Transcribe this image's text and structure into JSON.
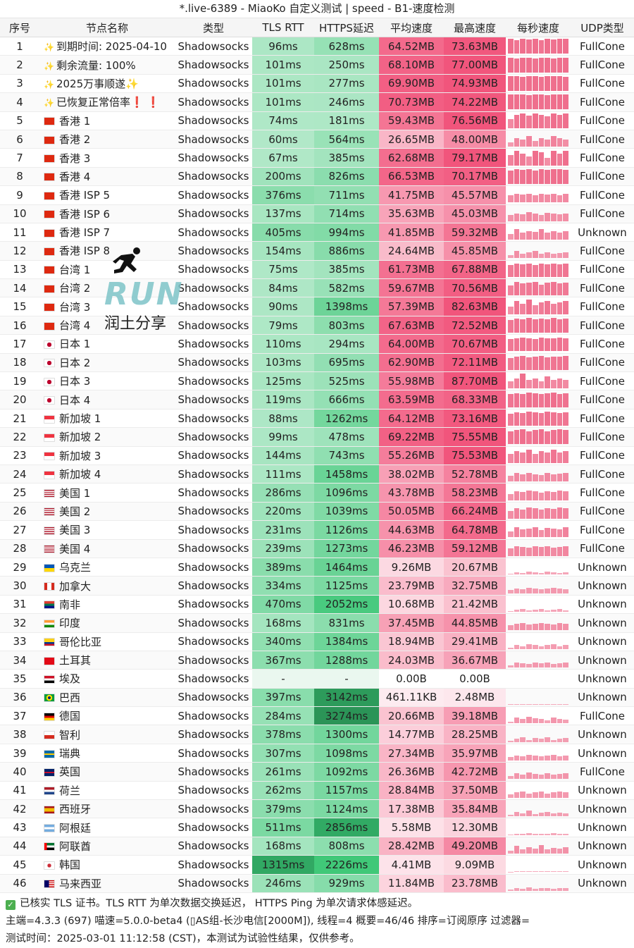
{
  "window": {
    "title": "*.live-6389 - MiaoKo 自定义测试 | speed - B1-速度检测"
  },
  "columns": [
    "序号",
    "节点名称",
    "类型",
    "TLS RTT",
    "HTTPS延迟",
    "平均速度",
    "最高速度",
    "每秒速度",
    "UDP类型"
  ],
  "rows": [
    {
      "idx": "1",
      "flag": "✨",
      "name": "到期时间: 2025-04-10",
      "type": "Shadowsocks",
      "tls": "96ms",
      "https": "628ms",
      "avg": "64.52MB",
      "max": "73.63MB",
      "udp": "FullCone",
      "spark": [
        1,
        0.9,
        1,
        0.95,
        1,
        0.9,
        1,
        0.95,
        1,
        1
      ]
    },
    {
      "idx": "2",
      "flag": "✨",
      "name": "剩余流量: 100%",
      "type": "Shadowsocks",
      "tls": "101ms",
      "https": "250ms",
      "avg": "68.10MB",
      "max": "77.00MB",
      "udp": "FullCone",
      "spark": [
        1,
        0.95,
        1,
        1,
        0.95,
        1,
        1,
        0.95,
        1,
        1
      ]
    },
    {
      "idx": "3",
      "flag": "✨",
      "name": "2025万事顺遂✨",
      "type": "Shadowsocks",
      "tls": "101ms",
      "https": "277ms",
      "avg": "69.90MB",
      "max": "74.93MB",
      "udp": "FullCone",
      "spark": [
        1,
        1,
        0.95,
        1,
        1,
        0.95,
        1,
        1,
        1,
        0.95
      ]
    },
    {
      "idx": "4",
      "flag": "✨",
      "name": "已恢复正常倍率❗ ❗",
      "type": "Shadowsocks",
      "tls": "101ms",
      "https": "246ms",
      "avg": "70.73MB",
      "max": "74.22MB",
      "udp": "FullCone",
      "spark": [
        1,
        1,
        1,
        0.95,
        1,
        1,
        0.95,
        1,
        1,
        1
      ]
    },
    {
      "idx": "5",
      "flag": "HK",
      "name": "香港 1",
      "type": "Shadowsocks",
      "tls": "74ms",
      "https": "181ms",
      "avg": "59.43MB",
      "max": "76.56MB",
      "udp": "FullCone",
      "spark": [
        0.6,
        0.9,
        1,
        0.85,
        1,
        0.9,
        0.8,
        1,
        0.9,
        1
      ]
    },
    {
      "idx": "6",
      "flag": "HK",
      "name": "香港 2",
      "type": "Shadowsocks",
      "tls": "60ms",
      "https": "564ms",
      "avg": "26.65MB",
      "max": "48.00MB",
      "udp": "FullCone",
      "spark": [
        0.3,
        0.6,
        0.5,
        0.7,
        0.4,
        0.6,
        0.5,
        0.7,
        0.6,
        0.5
      ]
    },
    {
      "idx": "7",
      "flag": "HK",
      "name": "香港 3",
      "type": "Shadowsocks",
      "tls": "67ms",
      "https": "385ms",
      "avg": "62.68MB",
      "max": "79.17MB",
      "udp": "FullCone",
      "spark": [
        0.7,
        1,
        0.8,
        0.6,
        1,
        0.9,
        0.5,
        1,
        0.8,
        1
      ]
    },
    {
      "idx": "8",
      "flag": "HK",
      "name": "香港 4",
      "type": "Shadowsocks",
      "tls": "200ms",
      "https": "826ms",
      "avg": "66.53MB",
      "max": "70.17MB",
      "udp": "FullCone",
      "spark": [
        0.9,
        1,
        0.95,
        1,
        0.9,
        1,
        0.95,
        1,
        1,
        0.95
      ]
    },
    {
      "idx": "9",
      "flag": "HK",
      "name": "香港 ISP 5",
      "type": "Shadowsocks",
      "tls": "376ms",
      "https": "711ms",
      "avg": "41.75MB",
      "max": "45.57MB",
      "udp": "FullCone",
      "spark": [
        0.5,
        0.6,
        0.55,
        0.6,
        0.5,
        0.6,
        0.55,
        0.6,
        0.5,
        0.6
      ]
    },
    {
      "idx": "10",
      "flag": "HK",
      "name": "香港 ISP 6",
      "type": "Shadowsocks",
      "tls": "137ms",
      "https": "714ms",
      "avg": "35.63MB",
      "max": "45.03MB",
      "udp": "FullCone",
      "spark": [
        0.4,
        0.5,
        0.45,
        0.6,
        0.5,
        0.4,
        0.55,
        0.5,
        0.45,
        0.5
      ]
    },
    {
      "idx": "11",
      "flag": "HK",
      "name": "香港 ISP 7",
      "type": "Shadowsocks",
      "tls": "405ms",
      "https": "994ms",
      "avg": "41.85MB",
      "max": "59.32MB",
      "udp": "Unknown",
      "spark": [
        0.4,
        0.7,
        0.5,
        0.6,
        0.55,
        0.7,
        0.5,
        0.6,
        0.5,
        0.6
      ]
    },
    {
      "idx": "12",
      "flag": "HK",
      "name": "香港 ISP 8",
      "type": "Shadowsocks",
      "tls": "154ms",
      "https": "886ms",
      "avg": "24.64MB",
      "max": "45.85MB",
      "udp": "FullCone",
      "spark": [
        0.2,
        0.5,
        0.3,
        0.4,
        0.5,
        0.3,
        0.4,
        0.3,
        0.35,
        0.4
      ]
    },
    {
      "idx": "13",
      "flag": "CN",
      "name": "台湾 1",
      "type": "Shadowsocks",
      "tls": "75ms",
      "https": "385ms",
      "avg": "61.73MB",
      "max": "67.88MB",
      "udp": "FullCone",
      "spark": [
        0.8,
        0.9,
        0.85,
        0.9,
        0.8,
        0.9,
        0.85,
        0.9,
        0.85,
        0.9
      ]
    },
    {
      "idx": "14",
      "flag": "CN",
      "name": "台湾 2",
      "type": "Shadowsocks",
      "tls": "84ms",
      "https": "582ms",
      "avg": "59.67MB",
      "max": "70.56MB",
      "udp": "FullCone",
      "spark": [
        0.7,
        0.9,
        0.8,
        0.85,
        0.9,
        0.75,
        0.85,
        0.9,
        0.8,
        0.85
      ]
    },
    {
      "idx": "15",
      "flag": "CN",
      "name": "台湾 3",
      "type": "Shadowsocks",
      "tls": "90ms",
      "https": "1398ms",
      "avg": "57.39MB",
      "max": "82.63MB",
      "udp": "FullCone",
      "spark": [
        0.5,
        0.9,
        0.7,
        1,
        0.6,
        0.8,
        0.9,
        0.7,
        0.8,
        0.9
      ]
    },
    {
      "idx": "16",
      "flag": "CN",
      "name": "台湾 4",
      "type": "Shadowsocks",
      "tls": "79ms",
      "https": "803ms",
      "avg": "67.63MB",
      "max": "72.52MB",
      "udp": "FullCone",
      "spark": [
        0.85,
        0.95,
        0.9,
        1,
        0.9,
        0.95,
        0.9,
        1,
        0.9,
        0.95
      ]
    },
    {
      "idx": "17",
      "flag": "JP",
      "name": "日本 1",
      "type": "Shadowsocks",
      "tls": "110ms",
      "https": "294ms",
      "avg": "64.00MB",
      "max": "70.67MB",
      "udp": "FullCone",
      "spark": [
        0.85,
        0.9,
        0.95,
        0.9,
        0.85,
        0.95,
        0.9,
        0.9,
        0.95,
        0.9
      ]
    },
    {
      "idx": "18",
      "flag": "JP",
      "name": "日本 2",
      "type": "Shadowsocks",
      "tls": "103ms",
      "https": "695ms",
      "avg": "62.90MB",
      "max": "72.11MB",
      "udp": "FullCone",
      "spark": [
        0.8,
        0.9,
        0.95,
        0.85,
        0.9,
        0.95,
        0.85,
        0.9,
        0.9,
        0.95
      ]
    },
    {
      "idx": "19",
      "flag": "JP",
      "name": "日本 3",
      "type": "Shadowsocks",
      "tls": "125ms",
      "https": "525ms",
      "avg": "55.98MB",
      "max": "87.70MB",
      "udp": "FullCone",
      "spark": [
        0.5,
        0.7,
        1,
        0.6,
        0.7,
        0.5,
        0.8,
        0.6,
        0.7,
        0.6
      ]
    },
    {
      "idx": "20",
      "flag": "JP",
      "name": "日本 4",
      "type": "Shadowsocks",
      "tls": "119ms",
      "https": "666ms",
      "avg": "63.59MB",
      "max": "68.33MB",
      "udp": "FullCone",
      "spark": [
        0.9,
        0.95,
        0.9,
        1,
        0.95,
        0.9,
        0.95,
        1,
        0.9,
        0.95
      ]
    },
    {
      "idx": "21",
      "flag": "SG",
      "name": "新加坡 1",
      "type": "Shadowsocks",
      "tls": "88ms",
      "https": "1262ms",
      "avg": "64.12MB",
      "max": "73.16MB",
      "udp": "FullCone",
      "spark": [
        0.8,
        0.9,
        0.85,
        0.95,
        0.9,
        0.85,
        0.95,
        0.9,
        0.85,
        0.9
      ]
    },
    {
      "idx": "22",
      "flag": "SG",
      "name": "新加坡 2",
      "type": "Shadowsocks",
      "tls": "99ms",
      "https": "478ms",
      "avg": "69.22MB",
      "max": "75.55MB",
      "udp": "FullCone",
      "spark": [
        0.9,
        0.95,
        1,
        0.9,
        0.95,
        1,
        0.9,
        0.95,
        1,
        0.95
      ]
    },
    {
      "idx": "23",
      "flag": "SG",
      "name": "新加坡 3",
      "type": "Shadowsocks",
      "tls": "144ms",
      "https": "743ms",
      "avg": "55.26MB",
      "max": "75.53MB",
      "udp": "FullCone",
      "spark": [
        0.6,
        0.8,
        0.7,
        0.9,
        0.6,
        0.8,
        0.7,
        0.9,
        0.7,
        0.8
      ]
    },
    {
      "idx": "24",
      "flag": "SG",
      "name": "新加坡 4",
      "type": "Shadowsocks",
      "tls": "111ms",
      "https": "1458ms",
      "avg": "38.02MB",
      "max": "52.78MB",
      "udp": "FullCone",
      "spark": [
        0.4,
        0.6,
        0.5,
        0.6,
        0.5,
        0.45,
        0.6,
        0.5,
        0.55,
        0.6
      ]
    },
    {
      "idx": "25",
      "flag": "US",
      "name": "美国 1",
      "type": "Shadowsocks",
      "tls": "286ms",
      "https": "1096ms",
      "avg": "43.78MB",
      "max": "58.23MB",
      "udp": "FullCone",
      "spark": [
        0.4,
        0.6,
        0.55,
        0.65,
        0.6,
        0.5,
        0.6,
        0.55,
        0.65,
        0.6
      ]
    },
    {
      "idx": "26",
      "flag": "US",
      "name": "美国 2",
      "type": "Shadowsocks",
      "tls": "220ms",
      "https": "1039ms",
      "avg": "50.05MB",
      "max": "66.24MB",
      "udp": "FullCone",
      "spark": [
        0.5,
        0.7,
        0.6,
        0.75,
        0.7,
        0.6,
        0.7,
        0.65,
        0.75,
        0.7
      ]
    },
    {
      "idx": "27",
      "flag": "US",
      "name": "美国 3",
      "type": "Shadowsocks",
      "tls": "231ms",
      "https": "1126ms",
      "avg": "44.63MB",
      "max": "64.78MB",
      "udp": "FullCone",
      "spark": [
        0.4,
        0.7,
        0.55,
        0.6,
        0.7,
        0.5,
        0.65,
        0.6,
        0.55,
        0.7
      ]
    },
    {
      "idx": "28",
      "flag": "US",
      "name": "美国 4",
      "type": "Shadowsocks",
      "tls": "239ms",
      "https": "1273ms",
      "avg": "46.23MB",
      "max": "59.12MB",
      "udp": "FullCone",
      "spark": [
        0.5,
        0.65,
        0.6,
        0.55,
        0.65,
        0.6,
        0.65,
        0.55,
        0.6,
        0.65
      ]
    },
    {
      "idx": "29",
      "flag": "UA",
      "name": "乌克兰",
      "type": "Shadowsocks",
      "tls": "389ms",
      "https": "1464ms",
      "avg": "9.26MB",
      "max": "20.67MB",
      "udp": "Unknown",
      "spark": [
        0.05,
        0.15,
        0.1,
        0.2,
        0.15,
        0.1,
        0.2,
        0.15,
        0.1,
        0.15
      ]
    },
    {
      "idx": "30",
      "flag": "CA",
      "name": "加拿大",
      "type": "Shadowsocks",
      "tls": "334ms",
      "https": "1125ms",
      "avg": "23.79MB",
      "max": "32.75MB",
      "udp": "Unknown",
      "spark": [
        0.2,
        0.3,
        0.25,
        0.35,
        0.3,
        0.25,
        0.3,
        0.35,
        0.3,
        0.25
      ]
    },
    {
      "idx": "31",
      "flag": "ZA",
      "name": "南非",
      "type": "Shadowsocks",
      "tls": "470ms",
      "https": "2052ms",
      "avg": "10.68MB",
      "max": "21.42MB",
      "udp": "Unknown",
      "spark": [
        0.05,
        0.15,
        0.2,
        0.1,
        0.15,
        0.2,
        0.1,
        0.15,
        0.2,
        0.1
      ]
    },
    {
      "idx": "32",
      "flag": "IN",
      "name": "印度",
      "type": "Shadowsocks",
      "tls": "168ms",
      "https": "831ms",
      "avg": "37.45MB",
      "max": "44.85MB",
      "udp": "Unknown",
      "spark": [
        0.35,
        0.45,
        0.5,
        0.4,
        0.45,
        0.5,
        0.45,
        0.4,
        0.5,
        0.45
      ]
    },
    {
      "idx": "33",
      "flag": "CO",
      "name": "哥伦比亚",
      "type": "Shadowsocks",
      "tls": "340ms",
      "https": "1384ms",
      "avg": "18.94MB",
      "max": "29.41MB",
      "udp": "Unknown",
      "spark": [
        0.1,
        0.25,
        0.2,
        0.3,
        0.25,
        0.2,
        0.25,
        0.3,
        0.2,
        0.25
      ]
    },
    {
      "idx": "34",
      "flag": "TR",
      "name": "土耳其",
      "type": "Shadowsocks",
      "tls": "367ms",
      "https": "1288ms",
      "avg": "24.03MB",
      "max": "36.67MB",
      "udp": "Unknown",
      "spark": [
        0.15,
        0.35,
        0.3,
        0.25,
        0.35,
        0.3,
        0.35,
        0.25,
        0.3,
        0.35
      ]
    },
    {
      "idx": "35",
      "flag": "EG",
      "name": "埃及",
      "type": "Shadowsocks",
      "tls": "-",
      "https": "-",
      "avg": "0.00B",
      "max": "0.00B",
      "udp": "Unknown",
      "spark": [
        0,
        0,
        0,
        0,
        0,
        0,
        0,
        0,
        0,
        0
      ]
    },
    {
      "idx": "36",
      "flag": "BR",
      "name": "巴西",
      "type": "Shadowsocks",
      "tls": "397ms",
      "https": "3142ms",
      "avg": "461.11KB",
      "max": "2.48MB",
      "udp": "Unknown",
      "spark": [
        0.02,
        0.03,
        0.02,
        0.03,
        0.02,
        0.03,
        0.02,
        0.03,
        0.02,
        0.03
      ]
    },
    {
      "idx": "37",
      "flag": "DE",
      "name": "德国",
      "type": "Shadowsocks",
      "tls": "284ms",
      "https": "3274ms",
      "avg": "20.66MB",
      "max": "39.18MB",
      "udp": "FullCone",
      "spark": [
        0.1,
        0.4,
        0.3,
        0.45,
        0.35,
        0.3,
        0.2,
        0.4,
        0.3,
        0.25
      ]
    },
    {
      "idx": "38",
      "flag": "CL",
      "name": "智利",
      "type": "Shadowsocks",
      "tls": "378ms",
      "https": "1300ms",
      "avg": "14.77MB",
      "max": "28.25MB",
      "udp": "Unknown",
      "spark": [
        0.1,
        0.2,
        0.3,
        0.15,
        0.25,
        0.2,
        0.3,
        0.15,
        0.2,
        0.25
      ]
    },
    {
      "idx": "39",
      "flag": "SE",
      "name": "瑞典",
      "type": "Shadowsocks",
      "tls": "307ms",
      "https": "1098ms",
      "avg": "27.34MB",
      "max": "35.97MB",
      "udp": "Unknown",
      "spark": [
        0.25,
        0.35,
        0.3,
        0.4,
        0.35,
        0.3,
        0.35,
        0.4,
        0.3,
        0.35
      ]
    },
    {
      "idx": "40",
      "flag": "GB",
      "name": "英国",
      "type": "Shadowsocks",
      "tls": "261ms",
      "https": "1092ms",
      "avg": "26.36MB",
      "max": "42.72MB",
      "udp": "FullCone",
      "spark": [
        0.2,
        0.4,
        0.3,
        0.45,
        0.35,
        0.3,
        0.4,
        0.3,
        0.35,
        0.4
      ]
    },
    {
      "idx": "41",
      "flag": "NL",
      "name": "荷兰",
      "type": "Shadowsocks",
      "tls": "262ms",
      "https": "1157ms",
      "avg": "28.84MB",
      "max": "37.50MB",
      "udp": "Unknown",
      "spark": [
        0.25,
        0.35,
        0.4,
        0.3,
        0.35,
        0.4,
        0.3,
        0.35,
        0.4,
        0.35
      ]
    },
    {
      "idx": "42",
      "flag": "ES",
      "name": "西班牙",
      "type": "Shadowsocks",
      "tls": "379ms",
      "https": "1124ms",
      "avg": "17.38MB",
      "max": "35.84MB",
      "udp": "Unknown",
      "spark": [
        0.1,
        0.3,
        0.2,
        0.4,
        0.15,
        0.25,
        0.3,
        0.2,
        0.25,
        0.2
      ]
    },
    {
      "idx": "43",
      "flag": "AR",
      "name": "阿根廷",
      "type": "Shadowsocks",
      "tls": "511ms",
      "https": "2856ms",
      "avg": "5.58MB",
      "max": "12.30MB",
      "udp": "Unknown",
      "spark": [
        0.03,
        0.08,
        0.1,
        0.12,
        0.06,
        0.1,
        0.08,
        0.12,
        0.06,
        0.08
      ]
    },
    {
      "idx": "44",
      "flag": "AE",
      "name": "阿联酋",
      "type": "Shadowsocks",
      "tls": "168ms",
      "https": "808ms",
      "avg": "28.42MB",
      "max": "49.20MB",
      "udp": "Unknown",
      "spark": [
        0.2,
        0.5,
        0.3,
        0.45,
        0.35,
        0.55,
        0.3,
        0.4,
        0.35,
        0.45
      ]
    },
    {
      "idx": "45",
      "flag": "KR",
      "name": "韩国",
      "type": "Shadowsocks",
      "tls": "1315ms",
      "https": "2226ms",
      "avg": "4.41MB",
      "max": "9.09MB",
      "udp": "Unknown",
      "spark": [
        0.03,
        0.06,
        0.08,
        0.05,
        0.07,
        0.06,
        0.08,
        0.05,
        0.06,
        0.07
      ]
    },
    {
      "idx": "46",
      "flag": "MY",
      "name": "马来西亚",
      "type": "Shadowsocks",
      "tls": "246ms",
      "https": "929ms",
      "avg": "11.84MB",
      "max": "23.78MB",
      "udp": "Unknown",
      "spark": [
        0.08,
        0.2,
        0.15,
        0.25,
        0.12,
        0.18,
        0.2,
        0.15,
        0.2,
        0.18
      ]
    }
  ],
  "watermark": {
    "run": "RUN",
    "cn": "润土分享"
  },
  "footer": {
    "line1": "已核实 TLS 证书。TLS RTT 为单次数据交换延迟， HTTPS Ping 为单次请求体感延迟。",
    "line2": "主端=4.3.3 (697) 喵速=5.0.0-beta4 (▯AS组-长沙电信[2000M]), 线程=4 概要=46/46 排序=订阅原序 过滤器=",
    "line3": "测试时间：2025-03-01 11:12:58 (CST)，本测试为试验性结果，仅供参考。"
  },
  "colors": {
    "tls_green": "#27ae60",
    "https_green": "#1e8449",
    "speed_red": "#ec4d73",
    "spark": "#ef6f8d"
  }
}
